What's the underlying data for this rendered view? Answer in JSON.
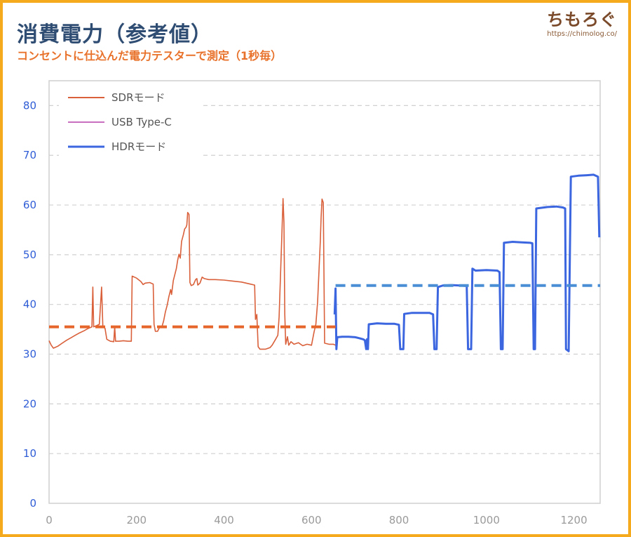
{
  "header": {
    "title": "消費電力（参考値）",
    "subtitle": "コンセントに仕込んだ電力テスターで測定（1秒毎）"
  },
  "brand": {
    "logo": "ちもろぐ",
    "url": "https://chimolog.co/"
  },
  "colors": {
    "frame": "#f5a91c",
    "title": "#2f4d73",
    "subtitle": "#e8722b",
    "sdr": "#d9603a",
    "usb": "#c86fc0",
    "hdr": "#3b66e0",
    "sdr_avg": "#e5652a",
    "hdr_avg": "#4a8fd6",
    "grid": "#d0d0d0",
    "y_tick": "#2f5dd6",
    "x_tick": "#9a9a9a"
  },
  "chart_data": {
    "type": "line",
    "xlim": [
      0,
      1260
    ],
    "ylim": [
      0,
      85
    ],
    "x_ticks": [
      0,
      200,
      400,
      600,
      800,
      1000,
      1200
    ],
    "y_ticks": [
      0,
      10,
      20,
      30,
      40,
      50,
      60,
      70,
      80
    ],
    "grid": "horizontal dashed",
    "legend_position": "top-left",
    "series": [
      {
        "name": "SDRモード",
        "key": "sdr",
        "points": [
          [
            0,
            32.7
          ],
          [
            5,
            31.8
          ],
          [
            10,
            31.2
          ],
          [
            20,
            31.6
          ],
          [
            30,
            32.2
          ],
          [
            40,
            32.8
          ],
          [
            50,
            33.3
          ],
          [
            60,
            33.8
          ],
          [
            70,
            34.3
          ],
          [
            80,
            34.7
          ],
          [
            90,
            35.2
          ],
          [
            98,
            35.5
          ],
          [
            100,
            43.5
          ],
          [
            102,
            35.5
          ],
          [
            110,
            35.8
          ],
          [
            115,
            36.0
          ],
          [
            120,
            43.5
          ],
          [
            123,
            35.5
          ],
          [
            128,
            35.2
          ],
          [
            132,
            33.0
          ],
          [
            140,
            32.6
          ],
          [
            148,
            32.5
          ],
          [
            150,
            35.5
          ],
          [
            152,
            32.6
          ],
          [
            160,
            32.6
          ],
          [
            170,
            32.7
          ],
          [
            180,
            32.6
          ],
          [
            188,
            32.6
          ],
          [
            190,
            45.7
          ],
          [
            200,
            45.3
          ],
          [
            210,
            44.6
          ],
          [
            215,
            44.0
          ],
          [
            220,
            44.3
          ],
          [
            230,
            44.4
          ],
          [
            238,
            44.1
          ],
          [
            240,
            36.0
          ],
          [
            243,
            34.6
          ],
          [
            248,
            34.6
          ],
          [
            252,
            35.3
          ],
          [
            255,
            35.6
          ],
          [
            258,
            35.5
          ],
          [
            262,
            36.7
          ],
          [
            266,
            38.5
          ],
          [
            270,
            39.8
          ],
          [
            274,
            41.6
          ],
          [
            278,
            43.0
          ],
          [
            280,
            42.0
          ],
          [
            284,
            44.8
          ],
          [
            288,
            46.2
          ],
          [
            291,
            47.2
          ],
          [
            294,
            48.9
          ],
          [
            297,
            50.1
          ],
          [
            300,
            49.3
          ],
          [
            303,
            52.7
          ],
          [
            307,
            54.0
          ],
          [
            310,
            55.2
          ],
          [
            313,
            55.5
          ],
          [
            315,
            56.0
          ],
          [
            317,
            58.5
          ],
          [
            320,
            58.1
          ],
          [
            322,
            44.4
          ],
          [
            325,
            43.8
          ],
          [
            330,
            44.0
          ],
          [
            335,
            45.0
          ],
          [
            338,
            45.2
          ],
          [
            340,
            43.9
          ],
          [
            345,
            44.3
          ],
          [
            350,
            45.5
          ],
          [
            355,
            45.2
          ],
          [
            365,
            45.0
          ],
          [
            380,
            45.0
          ],
          [
            400,
            44.9
          ],
          [
            420,
            44.7
          ],
          [
            440,
            44.5
          ],
          [
            460,
            44.1
          ],
          [
            470,
            43.9
          ],
          [
            472,
            37.0
          ],
          [
            475,
            38.0
          ],
          [
            478,
            31.5
          ],
          [
            482,
            31.0
          ],
          [
            488,
            31.0
          ],
          [
            495,
            31.0
          ],
          [
            505,
            31.3
          ],
          [
            510,
            31.8
          ],
          [
            518,
            33.0
          ],
          [
            523,
            33.8
          ],
          [
            526,
            37.5
          ],
          [
            529,
            45.5
          ],
          [
            532,
            53.5
          ],
          [
            535,
            61.3
          ],
          [
            537,
            56.5
          ],
          [
            539,
            38.0
          ],
          [
            541,
            32.0
          ],
          [
            545,
            33.5
          ],
          [
            548,
            31.8
          ],
          [
            553,
            32.5
          ],
          [
            560,
            32.0
          ],
          [
            570,
            32.3
          ],
          [
            580,
            31.7
          ],
          [
            590,
            32.0
          ],
          [
            600,
            31.8
          ],
          [
            606,
            34.5
          ],
          [
            610,
            36.0
          ],
          [
            614,
            40.5
          ],
          [
            617,
            46.5
          ],
          [
            620,
            52.5
          ],
          [
            622,
            57.5
          ],
          [
            624,
            61.2
          ],
          [
            627,
            60.5
          ],
          [
            630,
            32.2
          ],
          [
            640,
            32.0
          ],
          [
            650,
            32.0
          ],
          [
            655,
            31.8
          ]
        ]
      },
      {
        "name": "USB Type-C",
        "key": "usb",
        "points": []
      },
      {
        "name": "HDRモード",
        "key": "hdr",
        "points": [
          [
            653,
            38.0
          ],
          [
            655,
            43.2
          ],
          [
            657,
            31.0
          ],
          [
            659,
            33.4
          ],
          [
            670,
            33.5
          ],
          [
            685,
            33.5
          ],
          [
            700,
            33.4
          ],
          [
            710,
            33.2
          ],
          [
            718,
            33.0
          ],
          [
            722,
            32.8
          ],
          [
            725,
            31.0
          ],
          [
            727,
            33.0
          ],
          [
            729,
            31.0
          ],
          [
            731,
            36.0
          ],
          [
            750,
            36.2
          ],
          [
            770,
            36.1
          ],
          [
            790,
            36.1
          ],
          [
            800,
            35.9
          ],
          [
            803,
            31.0
          ],
          [
            810,
            31.0
          ],
          [
            812,
            38.1
          ],
          [
            830,
            38.3
          ],
          [
            850,
            38.3
          ],
          [
            870,
            38.3
          ],
          [
            878,
            38.0
          ],
          [
            881,
            31.0
          ],
          [
            886,
            31.0
          ],
          [
            889,
            43.5
          ],
          [
            900,
            43.8
          ],
          [
            920,
            43.9
          ],
          [
            940,
            43.8
          ],
          [
            955,
            43.7
          ],
          [
            958,
            31.0
          ],
          [
            965,
            31.0
          ],
          [
            968,
            47.2
          ],
          [
            975,
            46.8
          ],
          [
            1000,
            46.9
          ],
          [
            1025,
            46.8
          ],
          [
            1030,
            46.5
          ],
          [
            1033,
            31.0
          ],
          [
            1037,
            31.0
          ],
          [
            1040,
            52.4
          ],
          [
            1060,
            52.6
          ],
          [
            1080,
            52.5
          ],
          [
            1100,
            52.4
          ],
          [
            1105,
            52.3
          ],
          [
            1108,
            31.0
          ],
          [
            1111,
            31.0
          ],
          [
            1114,
            59.3
          ],
          [
            1140,
            59.6
          ],
          [
            1160,
            59.7
          ],
          [
            1175,
            59.5
          ],
          [
            1180,
            59.3
          ],
          [
            1182,
            31.0
          ],
          [
            1188,
            30.6
          ],
          [
            1193,
            65.7
          ],
          [
            1210,
            65.9
          ],
          [
            1230,
            66.0
          ],
          [
            1245,
            66.1
          ],
          [
            1255,
            65.7
          ],
          [
            1258,
            53.5
          ]
        ]
      }
    ],
    "averages": [
      {
        "key": "sdr_avg",
        "x": [
          0,
          655
        ],
        "y": 35.5
      },
      {
        "key": "hdr_avg",
        "x": [
          655,
          1260
        ],
        "y": 43.8
      }
    ]
  }
}
